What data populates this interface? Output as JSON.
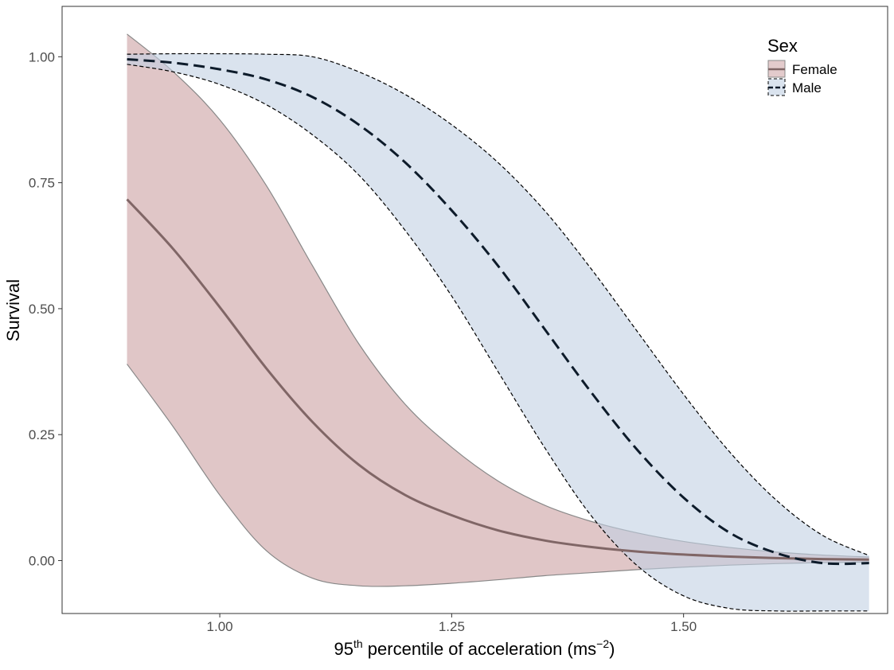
{
  "chart_data": {
    "type": "line",
    "title": "",
    "xlabel": {
      "prefix": "95",
      "sup": "th",
      "main": " percentile of acceleration ",
      "unit_base": "ms",
      "unit_sup": "−2"
    },
    "ylabel": "Survival",
    "xlim": [
      0.83,
      1.72
    ],
    "ylim": [
      -0.105,
      1.1
    ],
    "x_ticks": [
      1.0,
      1.25,
      1.5
    ],
    "x_tick_labels": [
      "1.00",
      "1.25",
      "1.50"
    ],
    "y_ticks": [
      0.0,
      0.25,
      0.5,
      0.75,
      1.0
    ],
    "y_tick_labels": [
      "0.00",
      "0.25",
      "0.50",
      "0.75",
      "1.00"
    ],
    "grid": false,
    "legend": {
      "title": "Sex",
      "position": "top-right"
    },
    "x": [
      0.9,
      0.95,
      1.0,
      1.05,
      1.1,
      1.15,
      1.2,
      1.25,
      1.3,
      1.35,
      1.4,
      1.45,
      1.5,
      1.55,
      1.6,
      1.65,
      1.7
    ],
    "series": [
      {
        "name": "Female",
        "line_style": "solid",
        "line_color": "#806666",
        "fill_color": "#c79799",
        "band_edge_color": "#888888",
        "values": [
          0.717,
          0.618,
          0.503,
          0.382,
          0.275,
          0.19,
          0.13,
          0.09,
          0.06,
          0.04,
          0.027,
          0.018,
          0.012,
          0.008,
          0.005,
          0.003,
          0.002
        ],
        "lower": [
          0.39,
          0.265,
          0.13,
          0.02,
          -0.035,
          -0.05,
          -0.05,
          -0.045,
          -0.038,
          -0.03,
          -0.024,
          -0.018,
          -0.013,
          -0.009,
          -0.006,
          -0.004,
          -0.003
        ],
        "upper": [
          1.045,
          0.97,
          0.875,
          0.745,
          0.585,
          0.43,
          0.31,
          0.225,
          0.158,
          0.11,
          0.078,
          0.055,
          0.038,
          0.026,
          0.017,
          0.011,
          0.007
        ]
      },
      {
        "name": "Male",
        "line_style": "dashed",
        "line_color": "#0d1b2a",
        "fill_color": "#c2d1e3",
        "band_edge_color": "#000000",
        "values": [
          0.995,
          0.988,
          0.975,
          0.955,
          0.92,
          0.865,
          0.79,
          0.695,
          0.585,
          0.46,
          0.335,
          0.22,
          0.125,
          0.055,
          0.015,
          -0.005,
          -0.005
        ],
        "lower": [
          0.985,
          0.97,
          0.945,
          0.905,
          0.845,
          0.765,
          0.655,
          0.525,
          0.375,
          0.225,
          0.09,
          -0.01,
          -0.07,
          -0.095,
          -0.1,
          -0.1,
          -0.1
        ],
        "upper": [
          1.005,
          1.006,
          1.006,
          1.005,
          1.0,
          0.97,
          0.925,
          0.865,
          0.79,
          0.695,
          0.58,
          0.455,
          0.33,
          0.215,
          0.12,
          0.05,
          0.01
        ]
      }
    ]
  }
}
